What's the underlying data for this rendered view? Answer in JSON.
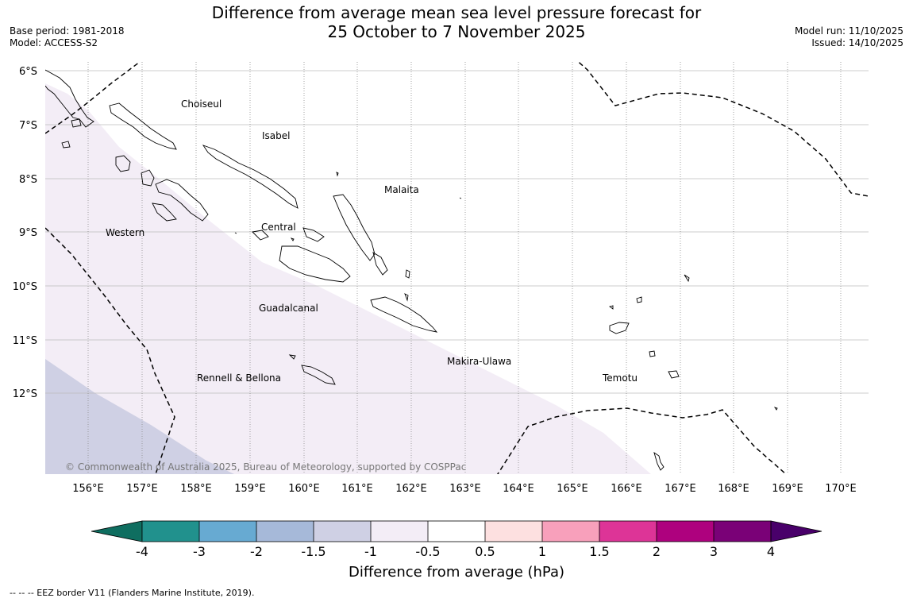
{
  "title": {
    "line1": "Difference from average mean sea level pressure forecast for",
    "line2": "25 October to 7 November 2025"
  },
  "meta": {
    "base_period": "Base period: 1981-2018",
    "model": "Model: ACCESS-S2",
    "model_run": "Model run: 11/10/2025",
    "issued": "Issued: 14/10/2025"
  },
  "map": {
    "lat_labels": [
      "6°S",
      "7°S",
      "8°S",
      "9°S",
      "10°S",
      "11°S",
      "12°S"
    ],
    "lon_labels": [
      "156°E",
      "157°E",
      "158°E",
      "159°E",
      "160°E",
      "161°E",
      "162°E",
      "163°E",
      "164°E",
      "165°E",
      "166°E",
      "167°E",
      "168°E",
      "169°E",
      "170°E"
    ],
    "regions": {
      "choiseul": "Choiseul",
      "isabel": "Isabel",
      "malaita": "Malaita",
      "western": "Western",
      "central": "Central",
      "guadalcanal": "Guadalcanal",
      "makira_ulawa": "Makira-Ulawa",
      "rennell_bellona": "Rennell & Bellona",
      "temotu": "Temotu"
    },
    "copyright": "© Commonwealth of Australia 2025, Bureau of Meteorology, supported by COSPPac",
    "anomaly_colors": {
      "minus_1_to_minus_0_5": "#f3edf6",
      "minus_1_5_to_minus_1": "#cfd0e4"
    }
  },
  "colorbar": {
    "ticks": [
      "-4",
      "-3",
      "-2",
      "-1.5",
      "-1",
      "-0.5",
      "0.5",
      "1",
      "1.5",
      "2",
      "3",
      "4"
    ],
    "label": "Difference from average (hPa)",
    "colors": [
      "#0f6e60",
      "#21918d",
      "#67aad2",
      "#a6b9d9",
      "#cfd0e4",
      "#f3edf6",
      "#ffffff",
      "#fde0e0",
      "#f8a0bb",
      "#dd3497",
      "#ae017e",
      "#7a0177",
      "#49006a"
    ]
  },
  "footnote": "--  --  -- EEZ border V11 (Flanders Marine Institute, 2019)."
}
